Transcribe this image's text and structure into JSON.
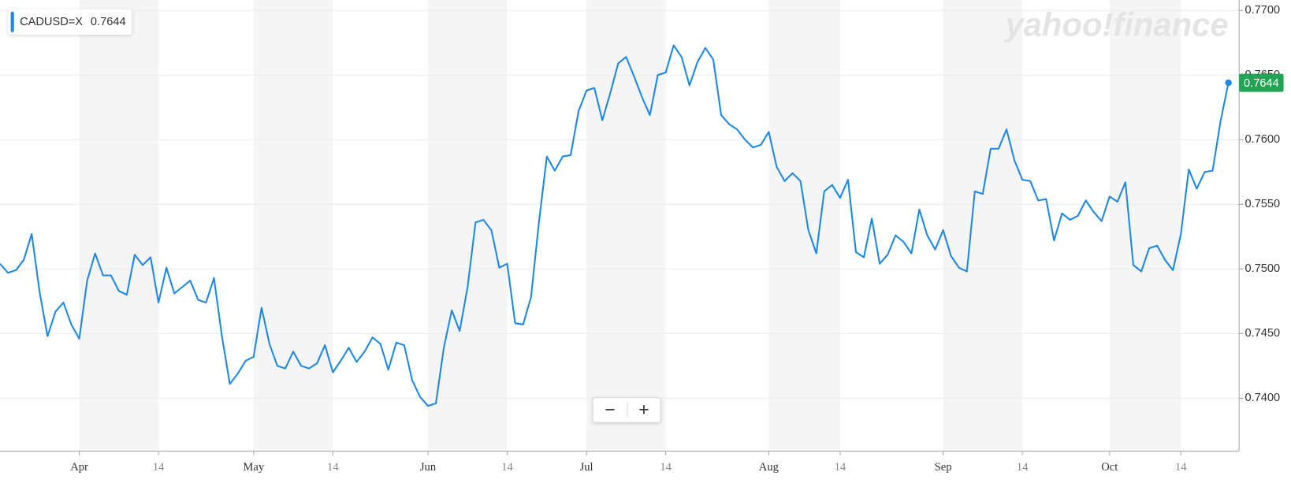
{
  "chart_data": {
    "type": "line",
    "categories": [
      null,
      null,
      null,
      null,
      null,
      null,
      null,
      null,
      null,
      null,
      "Apr",
      null,
      null,
      null,
      null,
      null,
      null,
      null,
      null,
      null,
      "14",
      null,
      null,
      null,
      null,
      null,
      null,
      null,
      null,
      null,
      null,
      null,
      "May",
      null,
      null,
      null,
      null,
      null,
      null,
      null,
      null,
      null,
      "14",
      null,
      null,
      null,
      null,
      null,
      null,
      null,
      null,
      null,
      null,
      null,
      "Jun",
      null,
      null,
      null,
      null,
      null,
      null,
      null,
      null,
      null,
      "14",
      null,
      null,
      null,
      null,
      null,
      null,
      null,
      null,
      null,
      "Jul",
      null,
      null,
      null,
      null,
      null,
      null,
      null,
      null,
      null,
      "14",
      null,
      null,
      null,
      null,
      null,
      null,
      null,
      null,
      null,
      null,
      null,
      null,
      "Aug",
      null,
      null,
      null,
      null,
      null,
      null,
      null,
      null,
      "14",
      null,
      null,
      null,
      null,
      null,
      null,
      null,
      null,
      null,
      null,
      null,
      null,
      "Sep",
      null,
      null,
      null,
      null,
      null,
      null,
      null,
      null,
      null,
      "14",
      null,
      null,
      null,
      null,
      null,
      null,
      null,
      null,
      null,
      null,
      "Oct",
      null,
      null,
      null,
      null,
      null,
      null,
      null,
      null,
      "14",
      null,
      null,
      null,
      null,
      null,
      null
    ],
    "series": [
      {
        "name": "CADUSD=X",
        "color": "#1e88e5",
        "values": [
          0.7504,
          0.7497,
          0.7499,
          0.7507,
          0.7527,
          0.7482,
          0.7448,
          0.7467,
          0.7474,
          0.7457,
          0.7446,
          0.7491,
          0.7512,
          0.7495,
          0.7495,
          0.7483,
          0.748,
          0.7511,
          0.7503,
          0.7509,
          0.7474,
          0.7501,
          0.7481,
          0.7486,
          0.7491,
          0.7476,
          0.7474,
          0.7493,
          0.7448,
          0.7411,
          0.7419,
          0.7429,
          0.7432,
          0.747,
          0.7442,
          0.7425,
          0.7423,
          0.7436,
          0.7425,
          0.7423,
          0.7427,
          0.7441,
          0.742,
          0.7429,
          0.7439,
          0.7428,
          0.7436,
          0.7447,
          0.7442,
          0.7422,
          0.7443,
          0.7441,
          0.7414,
          0.7401,
          0.7394,
          0.7396,
          0.7439,
          0.7468,
          0.7452,
          0.7486,
          0.7536,
          0.7538,
          0.753,
          0.7501,
          0.7504,
          0.7458,
          0.7457,
          0.7478,
          0.7536,
          0.7587,
          0.7576,
          0.7587,
          0.7588,
          0.7622,
          0.7638,
          0.764,
          0.7615,
          0.7636,
          0.7659,
          0.7664,
          0.7649,
          0.7633,
          0.7619,
          0.765,
          0.7652,
          0.7673,
          0.7664,
          0.7642,
          0.766,
          0.7671,
          0.7662,
          0.7619,
          0.7612,
          0.7608,
          0.76,
          0.7594,
          0.7596,
          0.7606,
          0.7579,
          0.7568,
          0.7574,
          0.7568,
          0.753,
          0.7512,
          0.756,
          0.7565,
          0.7555,
          0.7569,
          0.7513,
          0.7509,
          0.7539,
          0.7504,
          0.7511,
          0.7526,
          0.7521,
          0.7512,
          0.7546,
          0.7526,
          0.7515,
          0.753,
          0.751,
          0.7501,
          0.7498,
          0.756,
          0.7558,
          0.7593,
          0.7593,
          0.7608,
          0.7584,
          0.7569,
          0.7568,
          0.7553,
          0.7554,
          0.7522,
          0.7543,
          0.7538,
          0.7541,
          0.7553,
          0.7544,
          0.7537,
          0.7556,
          0.7552,
          0.7567,
          0.7503,
          0.7498,
          0.7516,
          0.7518,
          0.7507,
          0.7499,
          0.7527,
          0.7577,
          0.7562,
          0.7575,
          0.7576,
          0.7614,
          0.7644
        ]
      }
    ],
    "ylim": [
      0.7359,
      0.7708
    ],
    "yticks": [
      {
        "value": 0.74,
        "label": "0.7400"
      },
      {
        "value": 0.745,
        "label": "0.7450"
      },
      {
        "value": 0.75,
        "label": "0.7500"
      },
      {
        "value": 0.755,
        "label": "0.7550"
      },
      {
        "value": 0.76,
        "label": "0.7600"
      },
      {
        "value": 0.765,
        "label": "0.7650"
      },
      {
        "value": 0.77,
        "label": "0.7700"
      }
    ],
    "grid": true,
    "last_value_color": "#21a453",
    "watermark": "yahoo!finance"
  },
  "zoom_controls": {
    "zoom_out": "−",
    "zoom_in": "+"
  }
}
